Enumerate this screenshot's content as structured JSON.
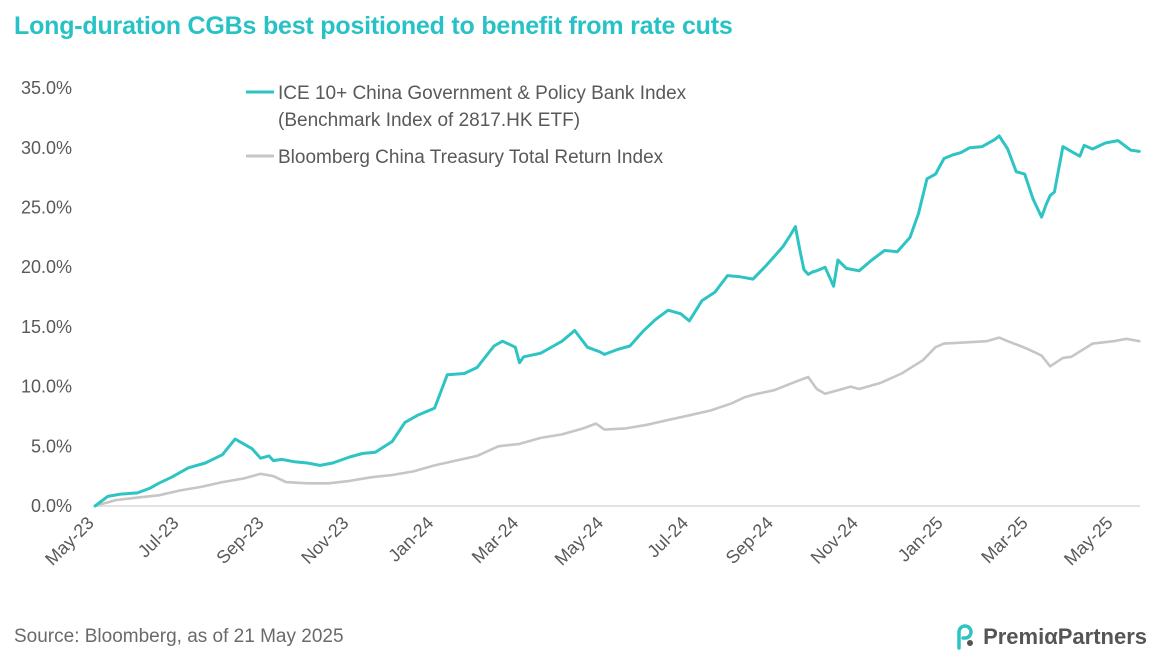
{
  "title": "Long-duration CGBs best positioned to benefit from rate cuts",
  "source": "Source: Bloomberg,  as of 21 May 2025",
  "logo": {
    "text": "PremiαPartners",
    "icon": "premia-partners-logo-icon"
  },
  "colors": {
    "teal": "#2ec4c4",
    "grey": "#c6c6c6",
    "title": "#27c2c5",
    "axis": "#d9d9d9"
  },
  "chart_data": {
    "type": "line",
    "title": "Long-duration CGBs best positioned to benefit from rate cuts",
    "xlabel": "",
    "ylabel": "",
    "ylim": [
      0,
      35
    ],
    "xlim": [
      0,
      24.7
    ],
    "y_ticks": [
      "0.0%",
      "5.0%",
      "10.0%",
      "15.0%",
      "20.0%",
      "25.0%",
      "30.0%",
      "35.0%"
    ],
    "x_ticks": [
      "May-23",
      "Jul-23",
      "Sep-23",
      "Nov-23",
      "Jan-24",
      "Mar-24",
      "May-24",
      "Jul-24",
      "Sep-24",
      "Nov-24",
      "Jan-25",
      "Mar-25",
      "May-25"
    ],
    "x_tick_positions": [
      0,
      2,
      4,
      6,
      8,
      10,
      12,
      14,
      16,
      18,
      20,
      22,
      24
    ],
    "legend": [
      {
        "name": "ICE 10+ China Government & Policy Bank Index",
        "name2": "(Benchmark Index of 2817.HK ETF)"
      },
      {
        "name": "Bloomberg China Treasury Total Return Index"
      }
    ],
    "series": [
      {
        "name": "ICE 10+ China Government & Policy Bank Index (Benchmark Index of 2817.HK ETF)",
        "color": "#2ec4c4",
        "x": [
          0,
          0.3,
          0.6,
          1.0,
          1.3,
          1.5,
          1.8,
          2.2,
          2.6,
          3.0,
          3.3,
          3.7,
          3.9,
          4.1,
          4.2,
          4.4,
          4.7,
          5.0,
          5.3,
          5.6,
          6.0,
          6.3,
          6.6,
          7.0,
          7.3,
          7.6,
          8.0,
          8.3,
          8.7,
          9.0,
          9.4,
          9.6,
          9.9,
          10.0,
          10.1,
          10.5,
          10.8,
          11.0,
          11.3,
          11.6,
          11.9,
          12.0,
          12.3,
          12.6,
          12.9,
          13.2,
          13.5,
          13.8,
          14.0,
          14.3,
          14.6,
          14.9,
          15.2,
          15.5,
          15.8,
          16.0,
          16.2,
          16.4,
          16.5,
          16.6,
          16.7,
          16.8,
          16.9,
          17.0,
          17.2,
          17.4,
          17.5,
          17.7,
          18.0,
          18.3,
          18.6,
          18.9,
          19.2,
          19.4,
          19.6,
          19.8,
          20.0,
          20.2,
          20.4,
          20.6,
          20.9,
          21.2,
          21.3,
          21.5,
          21.7,
          21.9,
          22.1,
          22.3,
          22.4,
          22.5,
          22.6,
          22.8,
          23.0,
          23.2,
          23.3,
          23.5,
          23.8,
          24.1,
          24.4,
          24.6
        ],
        "values": [
          0,
          0.8,
          1.0,
          1.1,
          1.5,
          1.9,
          2.4,
          3.2,
          3.6,
          4.3,
          5.6,
          4.8,
          4.0,
          4.2,
          3.8,
          3.9,
          3.7,
          3.6,
          3.4,
          3.6,
          4.1,
          4.4,
          4.5,
          5.4,
          7.0,
          7.6,
          8.2,
          11.0,
          11.1,
          11.6,
          13.4,
          13.8,
          13.3,
          12.0,
          12.5,
          12.8,
          13.4,
          13.8,
          14.7,
          13.3,
          12.9,
          12.7,
          13.1,
          13.4,
          14.6,
          15.6,
          16.4,
          16.1,
          15.5,
          17.2,
          17.9,
          19.3,
          19.2,
          19.0,
          20.1,
          20.9,
          21.7,
          22.8,
          23.4,
          21.5,
          19.8,
          19.4,
          19.6,
          19.7,
          20.0,
          18.4,
          20.6,
          19.9,
          19.7,
          20.6,
          21.4,
          21.3,
          22.5,
          24.5,
          27.4,
          27.8,
          29.1,
          29.4,
          29.6,
          30.0,
          30.1,
          30.7,
          31.0,
          29.9,
          28.0,
          27.8,
          25.7,
          24.2,
          25.2,
          26.0,
          26.3,
          30.1,
          29.7,
          29.3,
          30.2,
          29.9,
          30.4,
          30.6,
          29.8,
          29.7
        ]
      },
      {
        "name": "Bloomberg China Treasury Total Return Index",
        "color": "#c6c6c6",
        "x": [
          0,
          0.5,
          1.0,
          1.5,
          2.0,
          2.5,
          3.0,
          3.5,
          3.9,
          4.2,
          4.5,
          5.0,
          5.5,
          6.0,
          6.5,
          7.0,
          7.5,
          8.0,
          8.5,
          9.0,
          9.5,
          10.0,
          10.5,
          11.0,
          11.5,
          11.8,
          12.0,
          12.5,
          13.0,
          13.5,
          14.0,
          14.5,
          15.0,
          15.3,
          15.6,
          16.0,
          16.5,
          16.8,
          17.0,
          17.2,
          17.5,
          17.8,
          18.0,
          18.5,
          19.0,
          19.5,
          19.8,
          20.0,
          20.5,
          21.0,
          21.3,
          21.5,
          21.8,
          22.0,
          22.3,
          22.5,
          22.8,
          23.0,
          23.5,
          24.0,
          24.3,
          24.6
        ],
        "values": [
          0,
          0.5,
          0.7,
          0.9,
          1.3,
          1.6,
          2.0,
          2.3,
          2.7,
          2.5,
          2.0,
          1.9,
          1.9,
          2.1,
          2.4,
          2.6,
          2.9,
          3.4,
          3.8,
          4.2,
          5.0,
          5.2,
          5.7,
          6.0,
          6.5,
          6.9,
          6.4,
          6.5,
          6.8,
          7.2,
          7.6,
          8.0,
          8.6,
          9.1,
          9.4,
          9.7,
          10.4,
          10.8,
          9.8,
          9.4,
          9.7,
          10.0,
          9.8,
          10.3,
          11.1,
          12.2,
          13.3,
          13.6,
          13.7,
          13.8,
          14.1,
          13.8,
          13.4,
          13.1,
          12.6,
          11.7,
          12.4,
          12.5,
          13.6,
          13.8,
          14.0,
          13.8
        ]
      }
    ]
  }
}
